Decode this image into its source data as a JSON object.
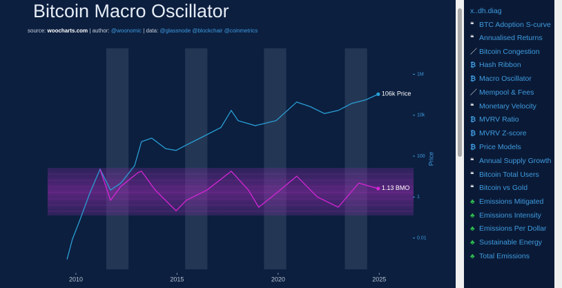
{
  "chart_data": {
    "type": "line",
    "title": "Bitcoin Macro Oscillator",
    "source": [
      "source:",
      "woocharts.com",
      "| author:",
      "@woonomic",
      "| data:",
      "@glassnode @blockchair @coinmetrics"
    ],
    "y_label": "Price",
    "xlim": [
      2008.6,
      2026.8
    ],
    "xticks": [
      2010,
      2015,
      2020,
      2025
    ],
    "ylim": [
      0.0002,
      40000000
    ],
    "log_y": true,
    "yticks": [
      {
        "value": 1000000,
        "label": "1M"
      },
      {
        "value": 10000,
        "label": "10k"
      },
      100,
      1,
      0.01
    ],
    "y2lim": [
      -2.4,
      7.3
    ],
    "shaded_ranges": [
      [
        2011.5,
        2012.6
      ],
      [
        2015.4,
        2016.5
      ],
      [
        2019.3,
        2020.4
      ],
      [
        2023.3,
        2024.4
      ]
    ],
    "series": [
      {
        "name": "Price",
        "color": "#2a9fd6",
        "last_label": "106k",
        "x": [
          2009.56,
          2009.83,
          2010.17,
          2010.68,
          2011.19,
          2011.71,
          2012.22,
          2012.9,
          2013.24,
          2013.75,
          2014.44,
          2014.95,
          2015.46,
          2016.14,
          2017.17,
          2017.68,
          2018.02,
          2018.87,
          2019.9,
          2020.92,
          2021.6,
          2022.29,
          2022.97,
          2023.65,
          2024.33,
          2024.95
        ],
        "values": [
          0.0009,
          0.009,
          0.065,
          1.5,
          23,
          2.2,
          4.8,
          34,
          510,
          760,
          230,
          190,
          350,
          760,
          2500,
          17000,
          5400,
          3100,
          5400,
          44000,
          26000,
          12000,
          17000,
          38000,
          56000,
          106000
        ]
      },
      {
        "name": "BMO",
        "color": "#d526d5",
        "axis": "y2",
        "last_label": "1.13",
        "x": [
          2011.19,
          2011.71,
          2012.22,
          2013.07,
          2013.24,
          2013.92,
          2014.95,
          2015.46,
          2016.48,
          2017.68,
          2018.53,
          2019.04,
          2019.9,
          2020.92,
          2021.94,
          2022.97,
          2023.99,
          2024.95
        ],
        "values": [
          1.94,
          0.64,
          1.22,
          1.8,
          1.86,
          1.07,
          0.2,
          0.64,
          1.07,
          1.86,
          1.07,
          0.35,
          0.93,
          1.65,
          0.78,
          0.35,
          1.36,
          1.13
        ]
      }
    ]
  },
  "sidebar": {
    "heading": "x..dh.diag",
    "items": [
      "BTC Adoption S-curve",
      "Annualised Returns",
      "Bitcoin Congestion",
      "Hash Ribbon",
      "Macro Oscillator",
      "Mempool & Fees",
      "Monetary Velocity",
      "MVRV Ratio",
      "MVRV Z-score",
      "Price Models",
      "Annual Supply Growth",
      "Bitcoin Total Users",
      "Bitcoin vs Gold",
      "Emissions Mitigated",
      "Emissions Intensity",
      "Emissions Per Dollar",
      "Sustainable Energy",
      "Total Emissions"
    ]
  }
}
